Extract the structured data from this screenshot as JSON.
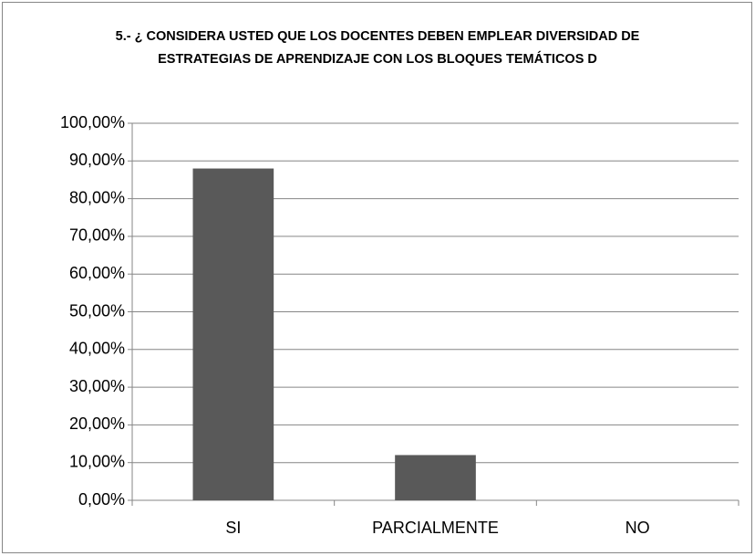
{
  "chart_data": {
    "type": "bar",
    "title": "5.- ¿ CONSIDERA USTED QUE LOS DOCENTES DEBEN EMPLEAR DIVERSIDAD DE ESTRATEGIAS DE APRENDIZAJE CON LOS  BLOQUES TEMÁTICOS D",
    "categories": [
      "SI",
      "PARCIALMENTE",
      "NO"
    ],
    "values": [
      88,
      12,
      0
    ],
    "color": "#595959",
    "ylim": [
      0,
      100
    ],
    "yticks": [
      {
        "value": 0,
        "label": "0,00%"
      },
      {
        "value": 10,
        "label": "10,00%"
      },
      {
        "value": 20,
        "label": "20,00%"
      },
      {
        "value": 30,
        "label": "30,00%"
      },
      {
        "value": 40,
        "label": "40,00%"
      },
      {
        "value": 50,
        "label": "50,00%"
      },
      {
        "value": 60,
        "label": "60,00%"
      },
      {
        "value": 70,
        "label": "70,00%"
      },
      {
        "value": 80,
        "label": "80,00%"
      },
      {
        "value": 90,
        "label": "90,00%"
      },
      {
        "value": 100,
        "label": "100,00%"
      }
    ],
    "grid": true
  }
}
